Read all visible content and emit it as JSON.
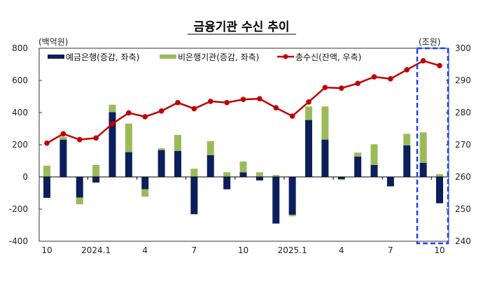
{
  "chart_data": {
    "type": "bar",
    "title": "금융기관 수신 추이",
    "left_unit": "(백억원)",
    "right_unit": "(조원)",
    "categories": [
      "2023.10",
      "2023.11",
      "2023.12",
      "2024.1",
      "2024.2",
      "2024.3",
      "2024.4",
      "2024.5",
      "2024.6",
      "2024.7",
      "2024.8",
      "2024.9",
      "2024.10",
      "2024.11",
      "2024.12",
      "2025.1",
      "2025.2",
      "2025.3",
      "2025.4",
      "2025.5",
      "2025.6",
      "2025.7",
      "2025.8",
      "2025.9",
      "2025.10"
    ],
    "x_tick_labels": [
      "10",
      "",
      "",
      "2024.1",
      "",
      "",
      "4",
      "",
      "",
      "7",
      "",
      "",
      "10",
      "",
      "",
      "2025.1",
      "",
      "",
      "4",
      "",
      "",
      "7",
      "",
      "",
      "10"
    ],
    "ylim_left": [
      -400,
      800
    ],
    "yticks_left": [
      "-400",
      "-200",
      "0",
      "200",
      "400",
      "600",
      "800"
    ],
    "ylim_right": [
      240,
      300
    ],
    "yticks_right": [
      "240",
      "250",
      "260",
      "270",
      "280",
      "290",
      "300"
    ],
    "legend_position": "top",
    "series": [
      {
        "name": "예금은행(증감, 좌축)",
        "kind": "bar",
        "axis": "left",
        "color": "#0b1f5c",
        "values": [
          -130,
          232,
          -128,
          -35,
          403,
          154,
          -77,
          167,
          162,
          -232,
          135,
          -77,
          29,
          -22,
          -290,
          -235,
          354,
          232,
          -14,
          126,
          74,
          -58,
          196,
          88,
          -164
        ]
      },
      {
        "name": "비은행기관(증감, 좌축)",
        "kind": "bar",
        "axis": "left",
        "color": "#9bbb59",
        "values": [
          70,
          18,
          -42,
          74,
          46,
          178,
          -46,
          11,
          99,
          51,
          88,
          29,
          67,
          29,
          12,
          -10,
          84,
          206,
          -6,
          25,
          129,
          -3,
          72,
          189,
          17
        ]
      },
      {
        "name": "총수신(잔액, 우축)",
        "kind": "line",
        "axis": "right",
        "color": "#c00000",
        "values": [
          270.5,
          273.4,
          271.6,
          272.1,
          276.5,
          279.9,
          278.7,
          280.5,
          283.1,
          281.2,
          283.5,
          283.1,
          284.1,
          284.3,
          281.5,
          278.9,
          283.3,
          287.8,
          287.6,
          289.1,
          291.1,
          290.5,
          293.3,
          296.1,
          294.6
        ]
      }
    ],
    "highlight": {
      "categories": [
        "2025.9",
        "2025.10"
      ],
      "style": "dashed box",
      "color": "#1f3fff"
    }
  }
}
